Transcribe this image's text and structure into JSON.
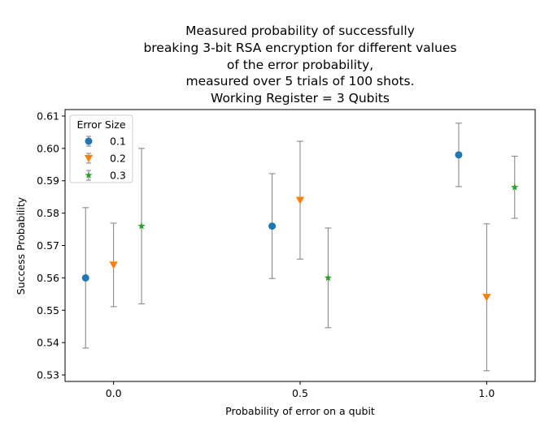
{
  "chart_data": {
    "type": "scatter",
    "title_lines": [
      "Measured probability of successfully",
      "breaking 3-bit RSA encryption for different values",
      "of the error probability,",
      "measured over 5 trials of 100 shots.",
      "Working Register = 3 Qubits"
    ],
    "xlabel": "Probability of error on a qubit",
    "ylabel": "Success Probability",
    "xlim": [
      -0.13,
      1.13
    ],
    "ylim": [
      0.528,
      0.612
    ],
    "x_ticks": [
      0.0,
      0.5,
      1.0
    ],
    "x_tick_labels": [
      "0.0",
      "0.5",
      "1.0"
    ],
    "y_ticks": [
      0.53,
      0.54,
      0.55,
      0.56,
      0.57,
      0.58,
      0.59,
      0.6,
      0.61
    ],
    "y_tick_labels": [
      "0.53",
      "0.54",
      "0.55",
      "0.56",
      "0.57",
      "0.58",
      "0.59",
      "0.60",
      "0.61"
    ],
    "grid": false,
    "legend": {
      "title": "Error Size",
      "placement": "upper-left"
    },
    "errorbar_color": "#808080",
    "series": [
      {
        "name": "0.1",
        "marker": "circle",
        "color": "#1f77b4",
        "x": [
          -0.075,
          0.425,
          0.925
        ],
        "y": [
          0.56,
          0.576,
          0.598
        ],
        "yerr": [
          0.0217,
          0.0162,
          0.0098
        ]
      },
      {
        "name": "0.2",
        "marker": "triangle-down",
        "color": "#ff7f0e",
        "x": [
          0.0,
          0.5,
          1.0
        ],
        "y": [
          0.564,
          0.584,
          0.554
        ],
        "yerr": [
          0.0129,
          0.0182,
          0.0227
        ]
      },
      {
        "name": "0.3",
        "marker": "star",
        "color": "#2ca02c",
        "x": [
          0.075,
          0.575,
          1.075
        ],
        "y": [
          0.576,
          0.56,
          0.588
        ],
        "yerr": [
          0.024,
          0.0154,
          0.0096
        ]
      }
    ]
  }
}
